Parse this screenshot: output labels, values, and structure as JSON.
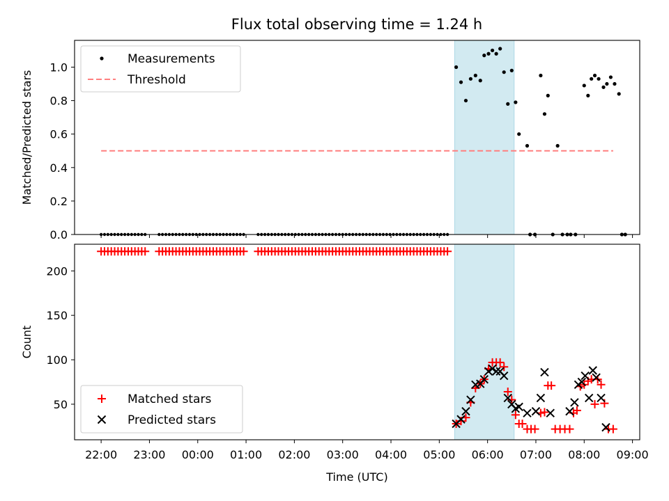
{
  "title": "Flux total observing time = 1.24 h",
  "colors": {
    "shade": "#add8e6",
    "threshold": "#ff7f7f",
    "matched": "#ff0000",
    "predicted": "#000000",
    "measurement": "#000000"
  },
  "chart_data": [
    {
      "type": "scatter",
      "panel": "top",
      "xlabel": "",
      "ylabel": "Matched/Predicted stars",
      "x_unit": "hours after 22:00 UTC",
      "xlim": [
        -0.55,
        11.15
      ],
      "ylim": [
        0,
        1.16
      ],
      "yticks": [
        "0.0",
        "0.2",
        "0.4",
        "0.6",
        "0.8",
        "1.0"
      ],
      "yticks_values": [
        0,
        0.2,
        0.4,
        0.6,
        0.8,
        1.0
      ],
      "shaded_interval": [
        7.32,
        8.55
      ],
      "legend": {
        "placement": "top-left",
        "entries": [
          "Measurements",
          "Threshold"
        ]
      },
      "threshold": {
        "name": "Threshold",
        "y": 0.5,
        "x_range": [
          0,
          10.6
        ]
      },
      "measurements": {
        "name": "Measurements",
        "zero_runs": [
          [
            0,
            0.95
          ],
          [
            1.2,
            3.0
          ],
          [
            3.25,
            7.2
          ]
        ],
        "points": [
          [
            7.35,
            1.0
          ],
          [
            7.45,
            0.91
          ],
          [
            7.55,
            0.8
          ],
          [
            7.65,
            0.93
          ],
          [
            7.75,
            0.95
          ],
          [
            7.85,
            0.92
          ],
          [
            7.93,
            1.07
          ],
          [
            8.02,
            1.08
          ],
          [
            8.1,
            1.1
          ],
          [
            8.18,
            1.08
          ],
          [
            8.26,
            1.11
          ],
          [
            8.34,
            0.97
          ],
          [
            8.42,
            0.78
          ],
          [
            8.5,
            0.98
          ],
          [
            8.58,
            0.79
          ],
          [
            8.65,
            0.6
          ],
          [
            8.82,
            0.53
          ],
          [
            8.88,
            0.0
          ],
          [
            8.98,
            0.0
          ],
          [
            9.1,
            0.95
          ],
          [
            9.18,
            0.72
          ],
          [
            9.25,
            0.83
          ],
          [
            9.35,
            0.0
          ],
          [
            9.45,
            0.53
          ],
          [
            9.55,
            0.0
          ],
          [
            9.65,
            0.0
          ],
          [
            9.72,
            0.0
          ],
          [
            9.82,
            0.0
          ],
          [
            10.0,
            0.89
          ],
          [
            10.08,
            0.83
          ],
          [
            10.15,
            0.93
          ],
          [
            10.22,
            0.95
          ],
          [
            10.3,
            0.93
          ],
          [
            10.4,
            0.88
          ],
          [
            10.47,
            0.9
          ],
          [
            10.55,
            0.94
          ],
          [
            10.63,
            0.9
          ],
          [
            10.72,
            0.84
          ],
          [
            10.78,
            0.0
          ],
          [
            10.85,
            0.0
          ]
        ]
      }
    },
    {
      "type": "scatter",
      "panel": "bottom",
      "xlabel": "Time (UTC)",
      "ylabel": "Count",
      "x_unit": "hours after 22:00 UTC",
      "xlim": [
        -0.55,
        11.15
      ],
      "ylim": [
        10,
        230
      ],
      "yticks": [
        "50",
        "100",
        "150",
        "200"
      ],
      "yticks_values": [
        50,
        100,
        150,
        200
      ],
      "xticks": [
        "22:00",
        "23:00",
        "00:00",
        "01:00",
        "02:00",
        "03:00",
        "04:00",
        "05:00",
        "06:00",
        "07:00",
        "08:00",
        "09:00"
      ],
      "xticks_values": [
        0,
        1,
        2,
        3,
        4,
        5,
        6,
        7,
        8,
        9,
        10,
        11
      ],
      "shaded_interval": [
        7.32,
        8.55
      ],
      "legend": {
        "placement": "bottom-left",
        "entries": [
          "Matched stars",
          "Predicted stars"
        ]
      },
      "matched_constant": {
        "value": 222,
        "runs": [
          [
            0,
            0.95
          ],
          [
            1.2,
            3.0
          ],
          [
            3.25,
            7.2
          ]
        ]
      },
      "series": [
        {
          "name": "Matched stars",
          "marker": "plus",
          "points": [
            [
              7.35,
              28
            ],
            [
              7.45,
              31
            ],
            [
              7.55,
              35
            ],
            [
              7.65,
              52
            ],
            [
              7.75,
              68
            ],
            [
              7.85,
              73
            ],
            [
              7.93,
              78
            ],
            [
              8.02,
              90
            ],
            [
              8.1,
              97
            ],
            [
              8.18,
              97
            ],
            [
              8.26,
              97
            ],
            [
              8.34,
              92
            ],
            [
              8.42,
              64
            ],
            [
              8.5,
              55
            ],
            [
              8.58,
              38
            ],
            [
              8.65,
              28
            ],
            [
              8.72,
              28
            ],
            [
              8.82,
              22
            ],
            [
              8.9,
              22
            ],
            [
              8.98,
              22
            ],
            [
              9.1,
              40
            ],
            [
              9.18,
              41
            ],
            [
              9.25,
              71
            ],
            [
              9.32,
              71
            ],
            [
              9.4,
              22
            ],
            [
              9.5,
              22
            ],
            [
              9.6,
              22
            ],
            [
              9.7,
              22
            ],
            [
              9.78,
              40
            ],
            [
              9.85,
              43
            ],
            [
              9.92,
              70
            ],
            [
              10.0,
              72
            ],
            [
              10.08,
              76
            ],
            [
              10.15,
              78
            ],
            [
              10.22,
              50
            ],
            [
              10.28,
              78
            ],
            [
              10.35,
              72
            ],
            [
              10.42,
              51
            ],
            [
              10.5,
              22
            ],
            [
              10.6,
              22
            ]
          ]
        },
        {
          "name": "Predicted stars",
          "marker": "x",
          "points": [
            [
              7.35,
              28
            ],
            [
              7.45,
              33
            ],
            [
              7.55,
              42
            ],
            [
              7.65,
              55
            ],
            [
              7.75,
              72
            ],
            [
              7.85,
              73
            ],
            [
              7.93,
              78
            ],
            [
              8.02,
              87
            ],
            [
              8.1,
              90
            ],
            [
              8.18,
              87
            ],
            [
              8.26,
              87
            ],
            [
              8.34,
              82
            ],
            [
              8.42,
              57
            ],
            [
              8.5,
              50
            ],
            [
              8.58,
              45
            ],
            [
              8.65,
              47
            ],
            [
              8.82,
              40
            ],
            [
              9.0,
              42
            ],
            [
              9.1,
              57
            ],
            [
              9.18,
              86
            ],
            [
              9.3,
              40
            ],
            [
              9.7,
              42
            ],
            [
              9.8,
              52
            ],
            [
              9.88,
              72
            ],
            [
              9.95,
              75
            ],
            [
              10.02,
              82
            ],
            [
              10.1,
              57
            ],
            [
              10.18,
              88
            ],
            [
              10.25,
              80
            ],
            [
              10.35,
              57
            ],
            [
              10.45,
              24
            ]
          ]
        }
      ]
    }
  ]
}
